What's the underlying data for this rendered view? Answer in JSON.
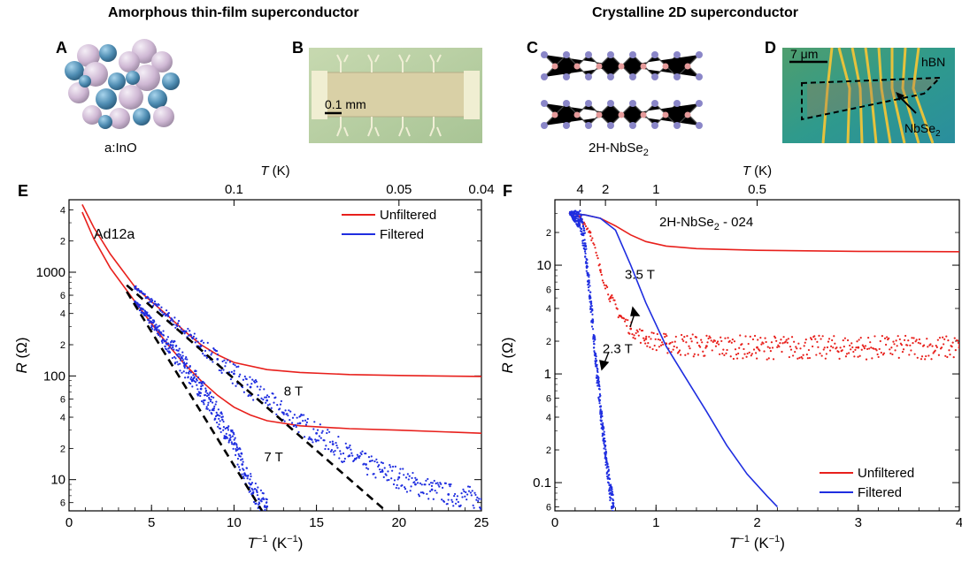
{
  "headers": {
    "left": "Amorphous thin-film superconductor",
    "right": "Crystalline 2D superconductor"
  },
  "panels": {
    "A": {
      "letter": "A",
      "caption": "a:InO"
    },
    "B": {
      "letter": "B",
      "scalebar": "0.1 mm"
    },
    "C": {
      "letter": "C",
      "caption_base": "2H-NbSe",
      "caption_sub": "2"
    },
    "D": {
      "letter": "D",
      "scalebar": "7 μm",
      "label_hbn": "hBN",
      "label_mat_base": "NbSe",
      "label_mat_sub": "2"
    },
    "E": {
      "letter": "E"
    },
    "F": {
      "letter": "F"
    }
  },
  "colors": {
    "unfiltered": "#e8201c",
    "filtered": "#1f2ee0",
    "fit": "#000000"
  },
  "chart_data": [
    {
      "panel": "E",
      "type": "line",
      "y_scale": "log",
      "xlim": [
        0,
        25
      ],
      "ylim": [
        5,
        5000
      ],
      "xlabel_base": "T",
      "xlabel_sup": "−1",
      "xlabel_unit": " (K",
      "xlabel_unit_sup": "−1",
      "xlabel_close": ")",
      "ylabel": "R (Ω)",
      "top_axis_label": "T (K)",
      "x_ticks": [
        0,
        5,
        10,
        15,
        20,
        25
      ],
      "top_ticks": [
        {
          "label": "0.1",
          "T": 0.1
        },
        {
          "label": "0.05",
          "T": 0.05
        },
        {
          "label": "0.04",
          "T": 0.04
        }
      ],
      "y_major_ticks": [
        {
          "value": 10,
          "label": "10"
        },
        {
          "value": 100,
          "label": "100"
        },
        {
          "value": 1000,
          "label": "1000"
        }
      ],
      "y_minor_ticks": [
        {
          "value": 6,
          "label": "6"
        },
        {
          "value": 20,
          "label": "2"
        },
        {
          "value": 40,
          "label": "4"
        },
        {
          "value": 60,
          "label": "6"
        },
        {
          "value": 200,
          "label": "2"
        },
        {
          "value": 400,
          "label": "4"
        },
        {
          "value": 600,
          "label": "6"
        },
        {
          "value": 2000,
          "label": "2"
        },
        {
          "value": 4000,
          "label": "4"
        }
      ],
      "sample_label": "Ad12a",
      "legend": [
        {
          "name": "Unfiltered",
          "color": "#e8201c"
        },
        {
          "name": "Filtered",
          "color": "#1f2ee0"
        }
      ],
      "annotations": [
        {
          "text": "8 T",
          "x": 13.6,
          "y": 65
        },
        {
          "text": "7 T",
          "x": 12.4,
          "y": 15
        }
      ],
      "series": [
        {
          "name": "Unfiltered",
          "field": "8 T",
          "style": "line",
          "color": "#e8201c",
          "points": [
            [
              0.8,
              4500
            ],
            [
              1.5,
              2700
            ],
            [
              2.5,
              1500
            ],
            [
              4,
              720
            ],
            [
              5,
              520
            ],
            [
              6,
              380
            ],
            [
              7,
              270
            ],
            [
              8,
              200
            ],
            [
              9,
              160
            ],
            [
              10,
              135
            ],
            [
              12,
              115
            ],
            [
              14,
              108
            ],
            [
              17,
              103
            ],
            [
              20,
              101
            ],
            [
              22,
              100
            ],
            [
              25,
              99
            ]
          ]
        },
        {
          "name": "Unfiltered",
          "field": "7 T",
          "style": "line",
          "color": "#e8201c",
          "points": [
            [
              0.8,
              3800
            ],
            [
              1.5,
              2100
            ],
            [
              2.5,
              1100
            ],
            [
              4,
              520
            ],
            [
              5,
              320
            ],
            [
              6,
              200
            ],
            [
              7,
              130
            ],
            [
              8,
              90
            ],
            [
              9,
              65
            ],
            [
              10,
              50
            ],
            [
              11,
              42
            ],
            [
              12,
              37
            ],
            [
              14,
              33
            ],
            [
              17,
              31
            ],
            [
              20,
              30
            ],
            [
              25,
              28
            ]
          ]
        },
        {
          "name": "Filtered",
          "field": "8 T",
          "style": "scatter",
          "color": "#1f2ee0",
          "points": [
            [
              4,
              720
            ],
            [
              5,
              520
            ],
            [
              6,
              380
            ],
            [
              7,
              270
            ],
            [
              8,
              195
            ],
            [
              9,
              145
            ],
            [
              10,
              105
            ],
            [
              11,
              78
            ],
            [
              12,
              58
            ],
            [
              13,
              44
            ],
            [
              14,
              35
            ],
            [
              15,
              28
            ],
            [
              16,
              22
            ],
            [
              17,
              17
            ],
            [
              18,
              14
            ],
            [
              19,
              12
            ],
            [
              20,
              10.5
            ],
            [
              21,
              9
            ],
            [
              22,
              8
            ],
            [
              23,
              7.2
            ],
            [
              25,
              6.5
            ]
          ]
        },
        {
          "name": "Filtered",
          "field": "7 T",
          "style": "scatter",
          "color": "#1f2ee0",
          "points": [
            [
              4,
              520
            ],
            [
              5,
              330
            ],
            [
              6,
              205
            ],
            [
              7,
              125
            ],
            [
              8,
              75
            ],
            [
              9,
              42
            ],
            [
              10,
              22
            ],
            [
              10.5,
              14
            ],
            [
              11,
              9
            ],
            [
              11.5,
              6.5
            ],
            [
              12,
              5.5
            ]
          ]
        },
        {
          "name": "Arrhenius fit",
          "style": "dashed",
          "color": "#000000",
          "points": [
            [
              3.5,
              750
            ],
            [
              19.2,
              5
            ]
          ]
        },
        {
          "name": "Arrhenius fit",
          "style": "dashed",
          "color": "#000000",
          "points": [
            [
              3.5,
              650
            ],
            [
              11.7,
              5
            ]
          ]
        }
      ]
    },
    {
      "panel": "F",
      "type": "line",
      "y_scale": "log",
      "xlim": [
        0,
        4
      ],
      "ylim": [
        0.055,
        40
      ],
      "xlabel_base": "T",
      "xlabel_sup": "−1",
      "xlabel_unit": " (K",
      "xlabel_unit_sup": "−1",
      "xlabel_close": ")",
      "ylabel": "R (Ω)",
      "top_axis_label": "T (K)",
      "x_ticks": [
        0,
        1,
        2,
        3,
        4
      ],
      "top_ticks": [
        {
          "label": "4",
          "T": 4
        },
        {
          "label": "2",
          "T": 2
        },
        {
          "label": "1",
          "T": 1
        },
        {
          "label": "0.5",
          "T": 0.5
        }
      ],
      "y_major_ticks": [
        {
          "value": 0.1,
          "label": "0.1"
        },
        {
          "value": 1,
          "label": "1"
        },
        {
          "value": 10,
          "label": "10"
        }
      ],
      "y_minor_ticks": [
        {
          "value": 0.06,
          "label": "6"
        },
        {
          "value": 0.2,
          "label": "2"
        },
        {
          "value": 0.4,
          "label": "4"
        },
        {
          "value": 0.6,
          "label": "6"
        },
        {
          "value": 2,
          "label": "2"
        },
        {
          "value": 4,
          "label": "4"
        },
        {
          "value": 6,
          "label": "6"
        },
        {
          "value": 20,
          "label": "2"
        }
      ],
      "sample_label_base": "2H-NbSe",
      "sample_label_sub": "2",
      "sample_label_tail": " - 024",
      "legend": [
        {
          "name": "Unfiltered",
          "color": "#e8201c"
        },
        {
          "name": "Filtered",
          "color": "#1f2ee0"
        }
      ],
      "annotations": [
        {
          "text": "3.5 T",
          "x": 0.84,
          "y": 7.5
        },
        {
          "text": "2.3 T",
          "x": 0.62,
          "y": 1.55
        }
      ],
      "series": [
        {
          "name": "Unfiltered",
          "field": "3.5 T",
          "style": "line",
          "color": "#e8201c",
          "points": [
            [
              0.15,
              30
            ],
            [
              0.3,
              29
            ],
            [
              0.45,
              27
            ],
            [
              0.6,
              23
            ],
            [
              0.75,
              19
            ],
            [
              0.9,
              16.5
            ],
            [
              1.1,
              15
            ],
            [
              1.4,
              14.2
            ],
            [
              2,
              13.7
            ],
            [
              3,
              13.4
            ],
            [
              4,
              13.3
            ]
          ]
        },
        {
          "name": "Unfiltered",
          "field": "2.3 T",
          "style": "scatter",
          "color": "#e8201c",
          "points": [
            [
              0.15,
              30
            ],
            [
              0.25,
              28
            ],
            [
              0.35,
              20
            ],
            [
              0.45,
              9
            ],
            [
              0.55,
              5
            ],
            [
              0.65,
              3.4
            ],
            [
              0.75,
              2.6
            ],
            [
              0.9,
              2.1
            ],
            [
              1.1,
              1.9
            ],
            [
              1.5,
              1.8
            ],
            [
              2,
              1.75
            ],
            [
              3,
              1.75
            ],
            [
              4,
              1.75
            ]
          ]
        },
        {
          "name": "Filtered",
          "field": "3.5 T",
          "style": "line",
          "color": "#1f2ee0",
          "points": [
            [
              0.15,
              30
            ],
            [
              0.3,
              29
            ],
            [
              0.45,
              27
            ],
            [
              0.6,
              21
            ],
            [
              0.75,
              10
            ],
            [
              0.9,
              4.5
            ],
            [
              1.1,
              1.8
            ],
            [
              1.3,
              0.9
            ],
            [
              1.5,
              0.45
            ],
            [
              1.7,
              0.22
            ],
            [
              1.9,
              0.12
            ],
            [
              2.1,
              0.075
            ],
            [
              2.2,
              0.06
            ]
          ]
        },
        {
          "name": "Filtered",
          "field": "2.3 T",
          "style": "scatter",
          "color": "#1f2ee0",
          "points": [
            [
              0.15,
              30
            ],
            [
              0.25,
              26
            ],
            [
              0.3,
              15
            ],
            [
              0.35,
              5
            ],
            [
              0.4,
              1.5
            ],
            [
              0.45,
              0.5
            ],
            [
              0.5,
              0.18
            ],
            [
              0.55,
              0.08
            ],
            [
              0.58,
              0.06
            ]
          ]
        }
      ]
    }
  ]
}
